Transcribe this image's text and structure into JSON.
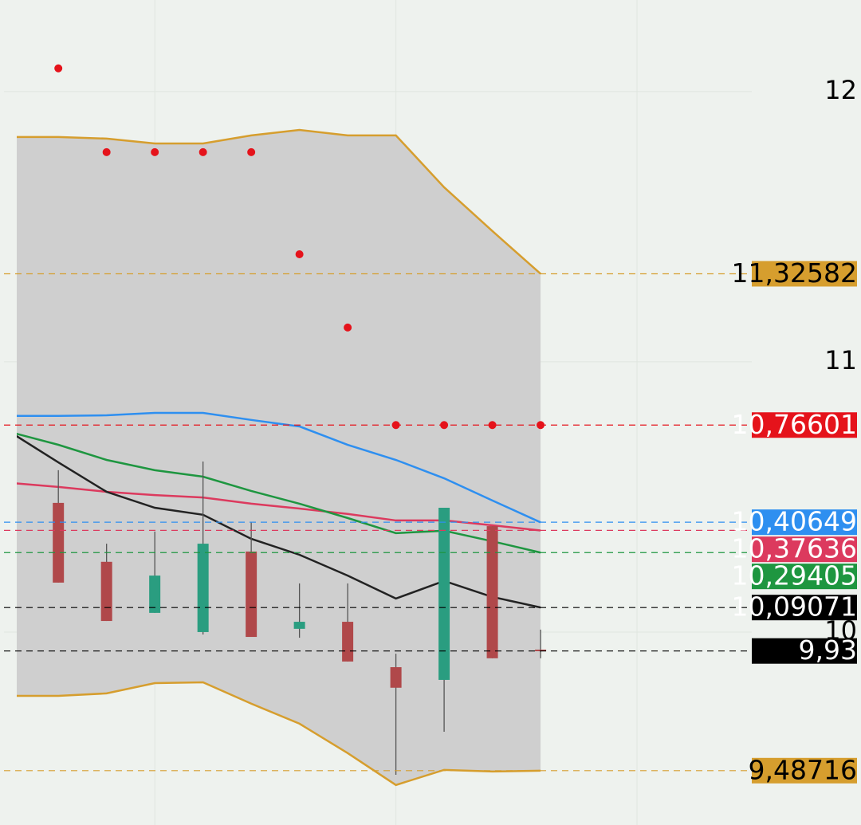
{
  "chart_data": {
    "type": "candlestick",
    "x": [
      0,
      1,
      2,
      3,
      4,
      5,
      6,
      7,
      8,
      9,
      10,
      11
    ],
    "xlim": [
      -0.21,
      15.38
    ],
    "xticks": [
      3,
      8,
      13
    ],
    "ylim": [
      9.286,
      12.339
    ],
    "yticks": [
      10,
      11,
      12
    ],
    "grid": true,
    "up_color": "#2a9d80",
    "down_color": "#b0484a",
    "open": [
      null,
      10.478,
      10.26,
      10.071,
      10.0,
      10.298,
      10.012,
      10.038,
      9.87,
      9.823,
      10.392,
      9.935
    ],
    "high": [
      null,
      10.599,
      10.327,
      10.372,
      10.631,
      10.407,
      10.18,
      10.18,
      9.92,
      10.46,
      10.392,
      10.009
    ],
    "low": [
      null,
      10.183,
      10.041,
      10.071,
      9.991,
      9.982,
      9.979,
      9.891,
      9.472,
      9.631,
      9.903,
      9.903
    ],
    "close": [
      null,
      10.183,
      10.041,
      10.209,
      10.327,
      9.982,
      10.038,
      9.891,
      9.794,
      10.46,
      9.903,
      9.93
    ],
    "series": [
      {
        "kind": "band",
        "color": "#d69e2e",
        "fill": "#cfcfcf",
        "upper": [
          11.832,
          11.832,
          11.826,
          11.808,
          11.808,
          11.838,
          11.858,
          11.838,
          11.838,
          11.646,
          11.484,
          11.326
        ],
        "lower": [
          9.764,
          9.764,
          9.773,
          9.811,
          9.814,
          9.735,
          9.661,
          9.552,
          9.434,
          9.49,
          9.484,
          9.487
        ]
      },
      {
        "kind": "line",
        "color": "#2e8ff0",
        "values": [
          10.8,
          10.8,
          10.802,
          10.811,
          10.811,
          10.785,
          10.761,
          10.693,
          10.637,
          10.569,
          10.487,
          10.406
        ]
      },
      {
        "kind": "line",
        "color": "#dc3a5e",
        "values": [
          10.552,
          10.537,
          10.519,
          10.507,
          10.498,
          10.475,
          10.457,
          10.437,
          10.413,
          10.413,
          10.395,
          10.376
        ]
      },
      {
        "kind": "line",
        "color": "#1e9640",
        "values": [
          10.74,
          10.693,
          10.637,
          10.599,
          10.575,
          10.522,
          10.475,
          10.422,
          10.366,
          10.375,
          10.336,
          10.294
        ]
      },
      {
        "kind": "line",
        "color": "#222222",
        "values": [
          10.74,
          10.628,
          10.519,
          10.46,
          10.434,
          10.345,
          10.286,
          10.209,
          10.124,
          10.189,
          10.13,
          10.091
        ]
      },
      {
        "kind": "dots",
        "color": "#e5131b",
        "values": [
          null,
          12.086,
          11.776,
          11.776,
          11.776,
          11.776,
          11.398,
          11.127,
          10.766,
          10.766,
          10.766,
          10.766
        ]
      }
    ],
    "price_labels": [
      {
        "value": 11.32582,
        "label": "11,32582",
        "color": "#d69e2e",
        "text_color": "#000000"
      },
      {
        "value": 10.76601,
        "label": "10,76601",
        "color": "#e5131b",
        "text_color": "#ffffff"
      },
      {
        "value": 10.40649,
        "label": "10,40649",
        "color": "#2e8ff0",
        "text_color": "#ffffff"
      },
      {
        "value": 10.37636,
        "label": "10,37636",
        "color": "#dc3a5e",
        "text_color": "#ffffff"
      },
      {
        "value": 10.29405,
        "label": "10,29405",
        "color": "#1e9640",
        "text_color": "#ffffff"
      },
      {
        "value": 10.09071,
        "label": "10,09071",
        "color": "#000000",
        "text_color": "#ffffff"
      },
      {
        "value": 9.93,
        "label": "9,93",
        "color": "#000000",
        "text_color": "#ffffff"
      },
      {
        "value": 9.48716,
        "label": "9,48716",
        "color": "#d69e2e",
        "text_color": "#000000"
      }
    ]
  }
}
